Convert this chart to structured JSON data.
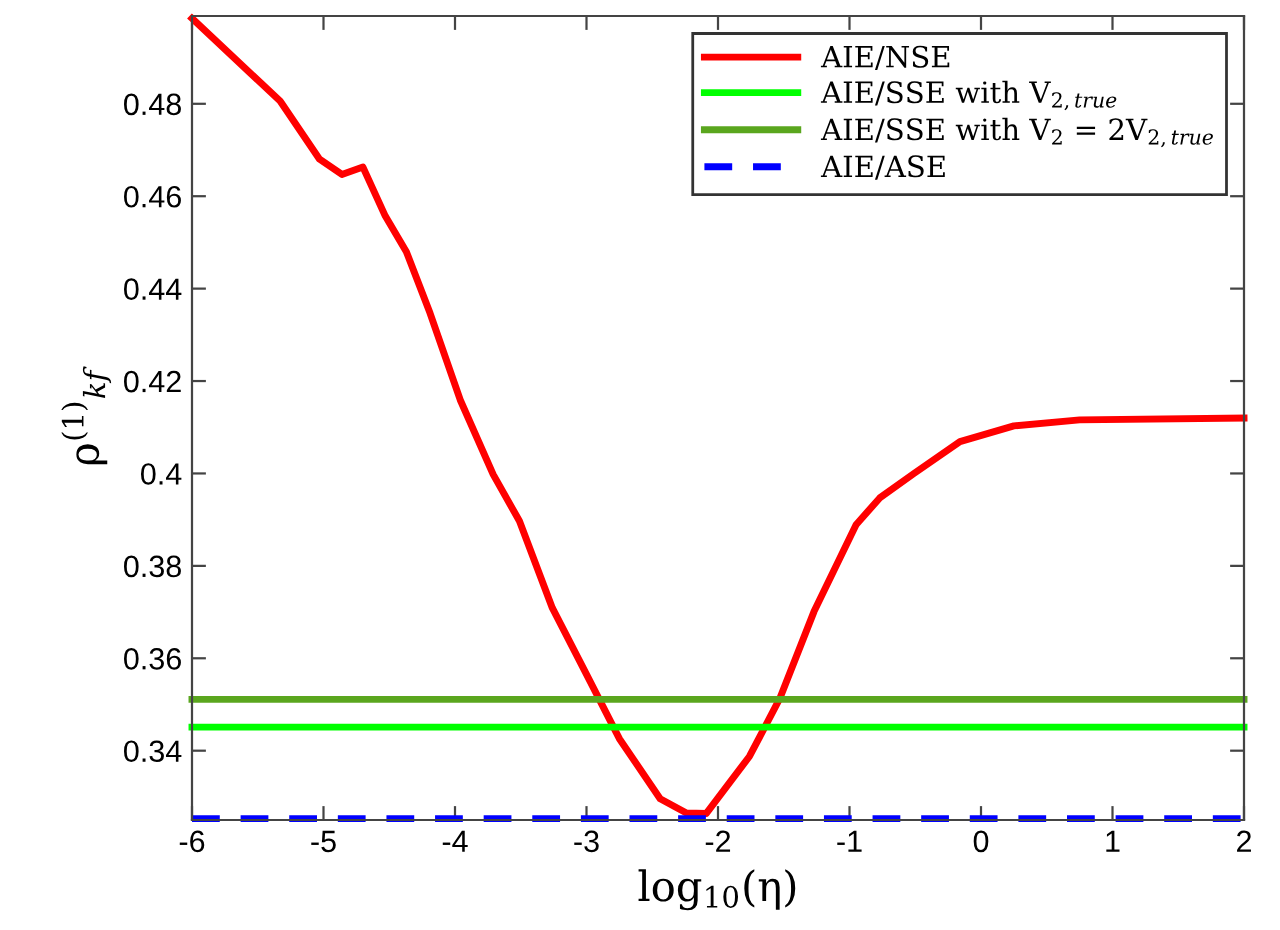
{
  "chart_data": {
    "type": "line",
    "xlabel": "log$_{10}$(η)",
    "ylabel": "ρ$^{(1)}$$_{kf}$",
    "xlim": [
      -6,
      2
    ],
    "xticks": [
      -6,
      -5,
      -4,
      -3,
      -2,
      -1,
      0,
      1,
      2
    ],
    "ylim": [
      0.325,
      0.499
    ],
    "yticks": [
      {
        "value": 0.34,
        "label": "0.34"
      },
      {
        "value": 0.36,
        "label": "0.36"
      },
      {
        "value": 0.38,
        "label": "0.38"
      },
      {
        "value": 0.4,
        "label": "0.4"
      },
      {
        "value": 0.42,
        "label": "0.42"
      },
      {
        "value": 0.44,
        "label": "0.44"
      },
      {
        "value": 0.46,
        "label": "0.46"
      },
      {
        "value": 0.48,
        "label": "0.48"
      }
    ],
    "grid": false,
    "legend": "top right",
    "series": [
      {
        "name": "AIE/NSE",
        "color": "#ff0000",
        "x": [
          -6,
          -5.33,
          -5.03,
          -4.86,
          -4.7,
          -4.53,
          -4.37,
          -4.19,
          -3.96,
          -3.71,
          -3.51,
          -3.26,
          -3.0,
          -2.75,
          -2.44,
          -2.24,
          -2.09,
          -1.76,
          -1.53,
          -1.27,
          -0.95,
          -0.77,
          -0.51,
          -0.16,
          0.25,
          0.75,
          2.0
        ],
        "values": [
          0.4985,
          0.4806,
          0.468,
          0.4647,
          0.4663,
          0.4557,
          0.448,
          0.4347,
          0.4159,
          0.3998,
          0.3897,
          0.3709,
          0.3565,
          0.3426,
          0.3296,
          0.3265,
          0.3264,
          0.3388,
          0.3513,
          0.3701,
          0.3889,
          0.3947,
          0.4,
          0.4069,
          0.4103,
          0.4116,
          0.412
        ]
      },
      {
        "name": "AIE/SSE with V$_{2,true}$",
        "color": "#00ff00",
        "x": [
          -6,
          2
        ],
        "values": [
          0.3451,
          0.3451
        ]
      },
      {
        "name": "AIE/SSE with V$_{2}$ = 2V$_{2,true}$",
        "color": "#5aa61e",
        "x": [
          -6,
          2
        ],
        "values": [
          0.3511,
          0.3511
        ]
      },
      {
        "name": "AIE/ASE",
        "color": "#0000ff",
        "line_style": "dashed",
        "x": [
          -6,
          2
        ],
        "values": [
          0.3253,
          0.3253
        ]
      }
    ]
  }
}
